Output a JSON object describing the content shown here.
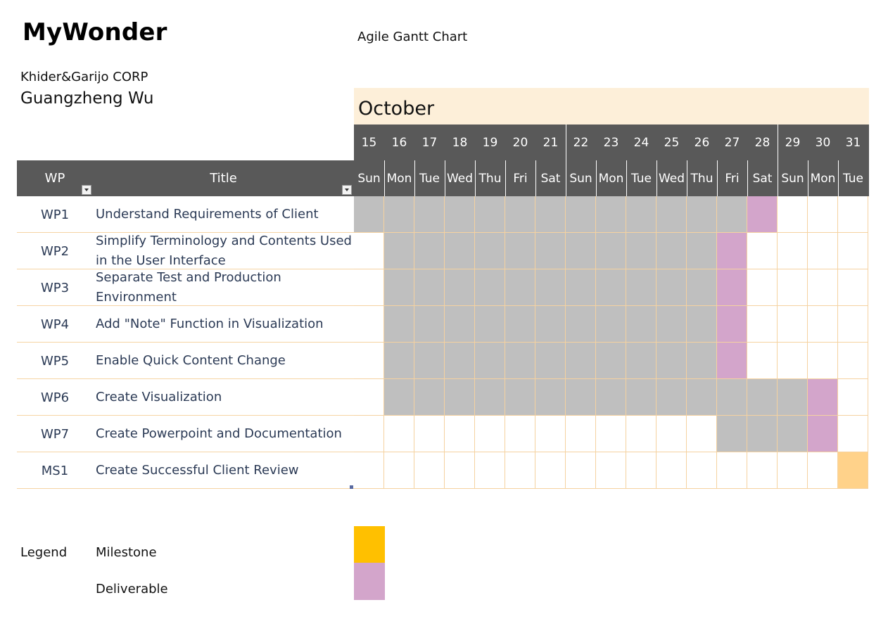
{
  "header": {
    "app_title": "MyWonder",
    "chart_title": "Agile Gantt Chart",
    "company": "Khider&Garijo CORP",
    "person": "Guangzheng Wu"
  },
  "table_header": {
    "wp": "WP",
    "title": "Title"
  },
  "legend": {
    "label": "Legend",
    "milestone": "Milestone",
    "deliverable": "Deliverable",
    "milestone_color": "#ffc000",
    "deliverable_color": "#d3a5cb"
  },
  "colors": {
    "header_bg": "#595959",
    "month_bg": "#fdefd9",
    "task": "#bfbfbf",
    "deliverable": "#d3a5cb",
    "milestone": "#ffd28a",
    "grid_line": "#f5d2a0"
  },
  "chart_data": {
    "type": "table",
    "month": "October",
    "days": [
      15,
      16,
      17,
      18,
      19,
      20,
      21,
      22,
      23,
      24,
      25,
      26,
      27,
      28,
      29,
      30,
      31
    ],
    "weekdays": [
      "Sun",
      "Mon",
      "Tue",
      "Wed",
      "Thu",
      "Fri",
      "Sat",
      "Sun",
      "Mon",
      "Tue",
      "Wed",
      "Thu",
      "Fri",
      "Sat",
      "Sun",
      "Mon",
      "Tue"
    ],
    "rows": [
      {
        "wp": "WP1",
        "title": "Understand Requirements of Client",
        "task_start": 15,
        "task_end": 27,
        "deliverable": 28
      },
      {
        "wp": "WP2",
        "title": "Simplify Terminology and Contents Used in the User Interface",
        "task_start": 16,
        "task_end": 26,
        "deliverable": 27
      },
      {
        "wp": "WP3",
        "title": "Separate Test and Production Environment",
        "task_start": 16,
        "task_end": 26,
        "deliverable": 27
      },
      {
        "wp": "WP4",
        "title": "Add \"Note\" Function in Visualization",
        "task_start": 16,
        "task_end": 26,
        "deliverable": 27
      },
      {
        "wp": "WP5",
        "title": "Enable Quick Content Change",
        "task_start": 16,
        "task_end": 26,
        "deliverable": 27
      },
      {
        "wp": "WP6",
        "title": "Create Visualization",
        "task_start": 16,
        "task_end": 29,
        "deliverable": 30
      },
      {
        "wp": "WP7",
        "title": "Create Powerpoint and Documentation",
        "task_start": 27,
        "task_end": 29,
        "deliverable": 30
      },
      {
        "wp": "MS1",
        "title": "Create Successful Client Review",
        "milestone": 31
      }
    ]
  }
}
